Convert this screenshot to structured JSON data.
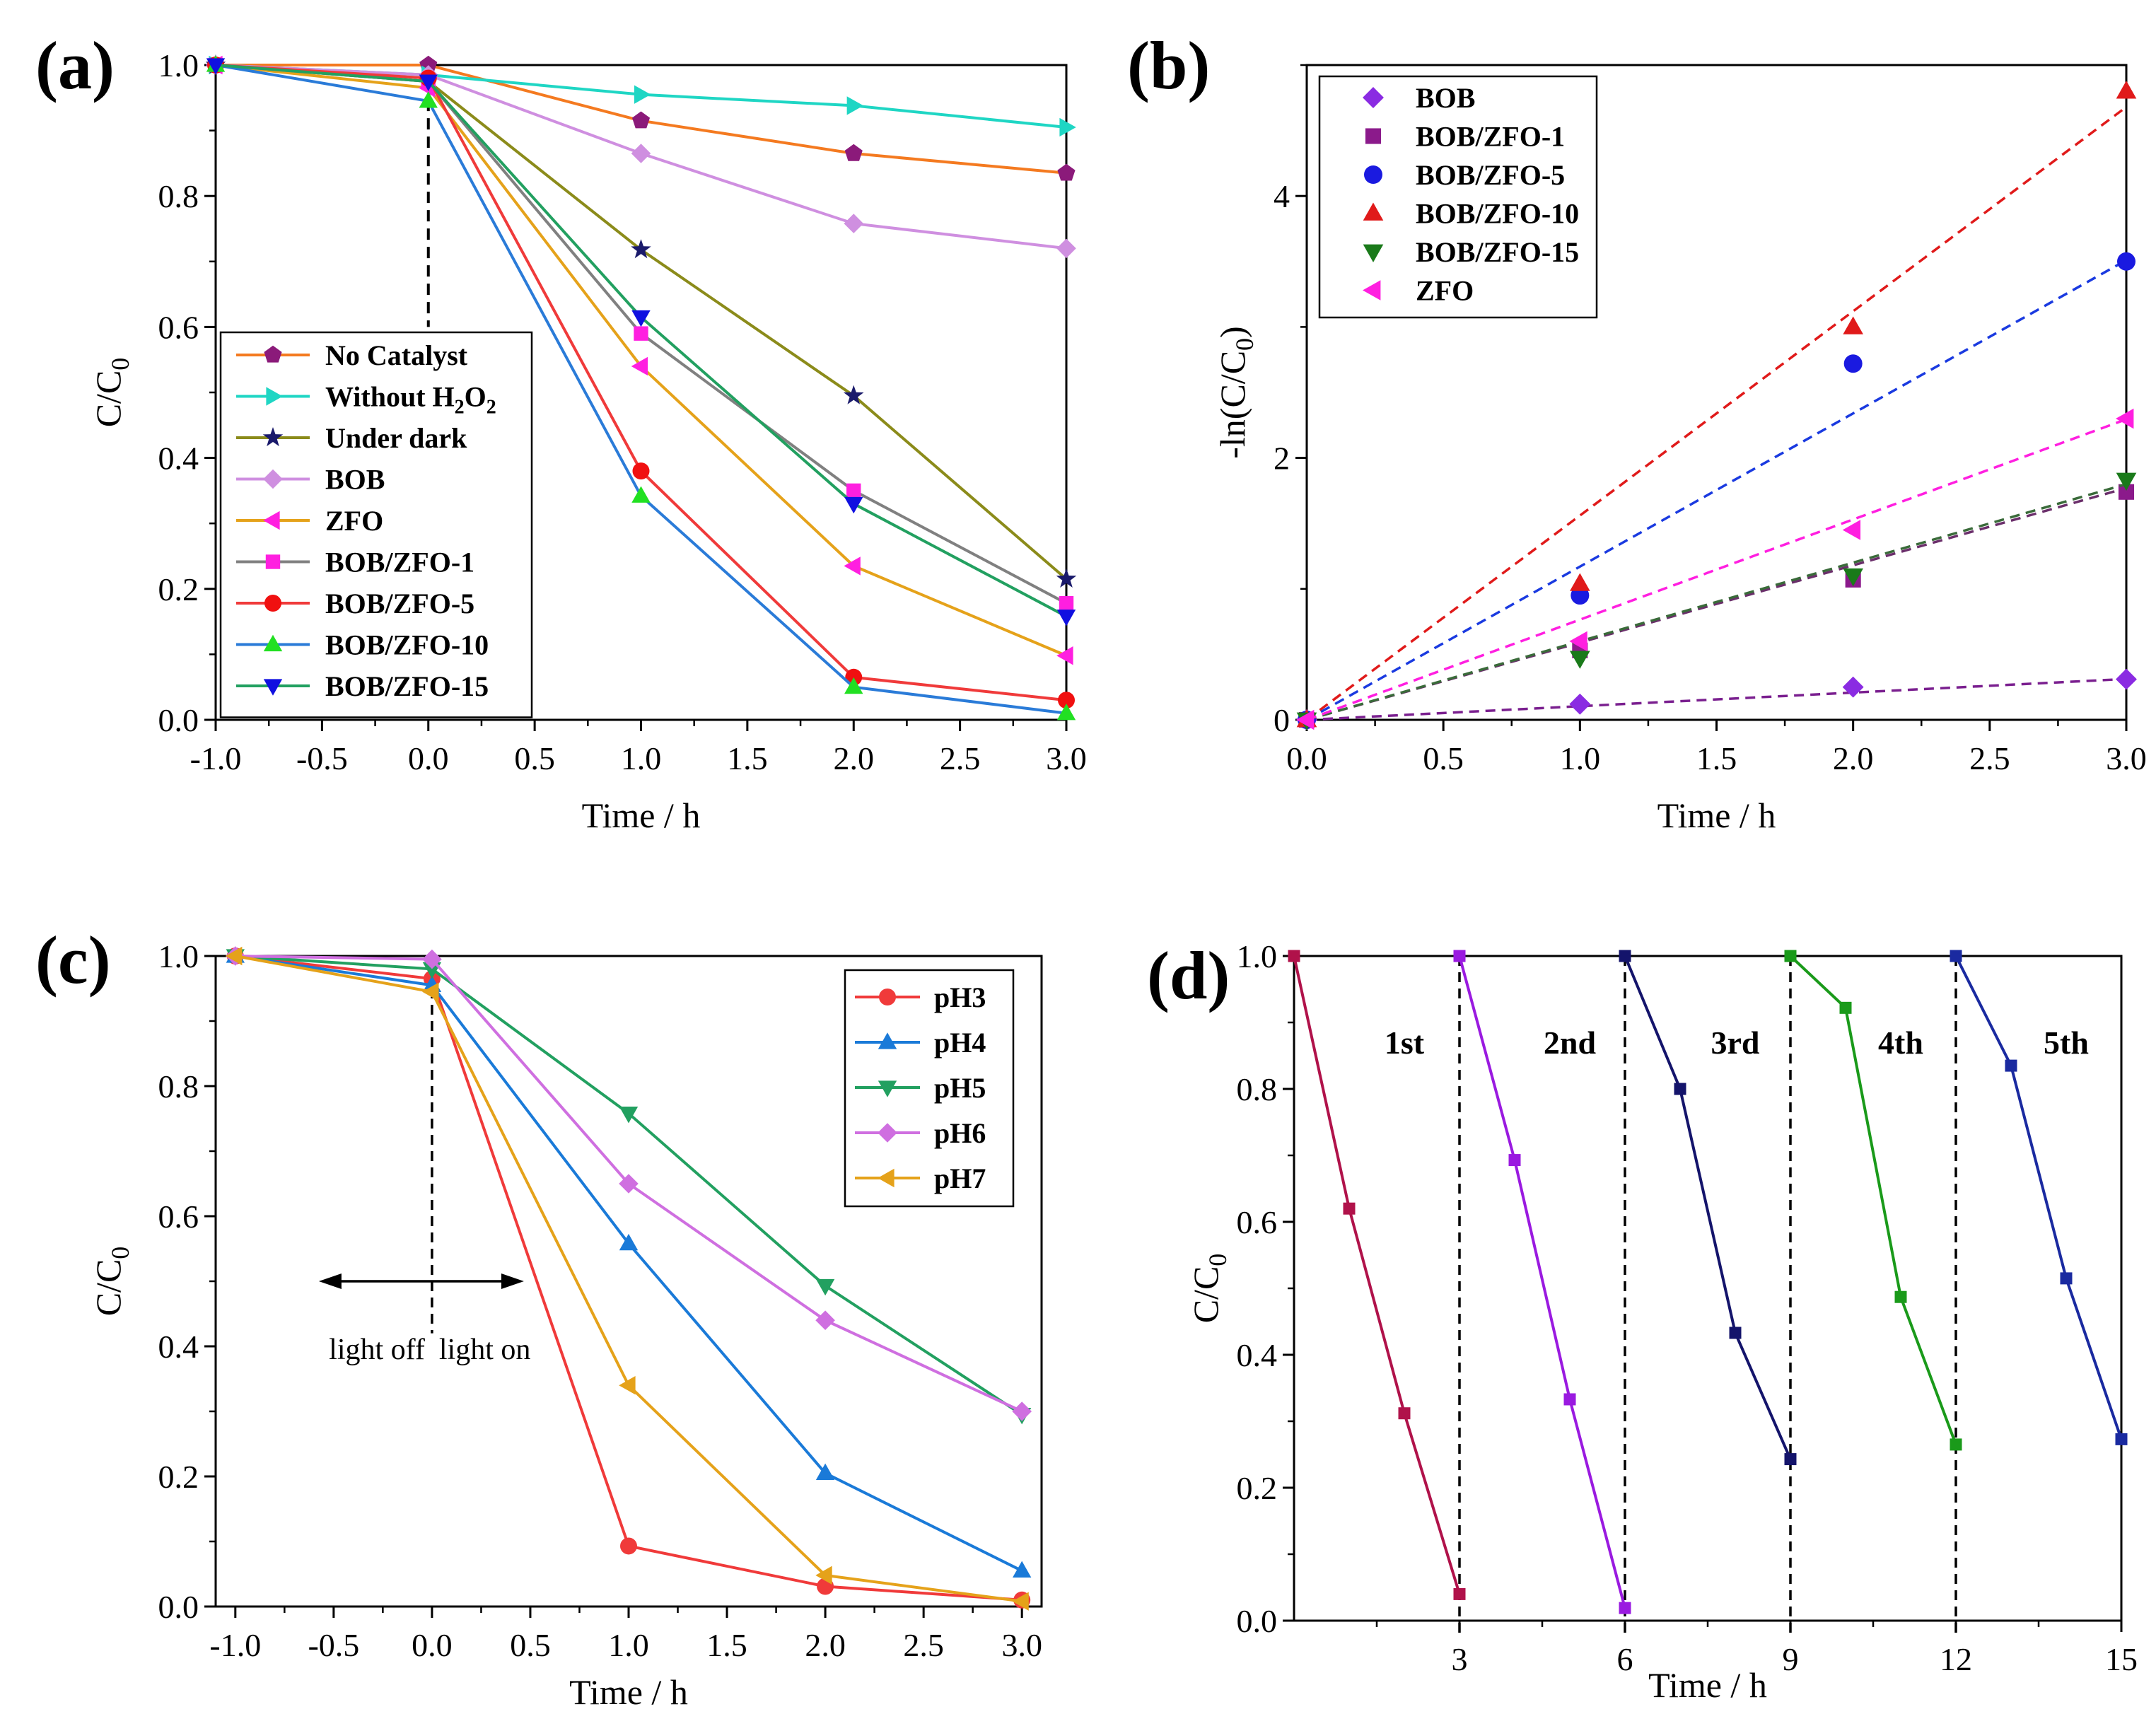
{
  "chart_data": [
    {
      "type": "line",
      "panel_label": "(a)",
      "xlabel": "Time / h",
      "ylabel": "C/C0",
      "xlim": [
        -1.0,
        3.0
      ],
      "ylim": [
        0.0,
        1.0
      ],
      "xticks": [
        "-1.0",
        "-0.5",
        "0.0",
        "0.5",
        "1.0",
        "1.5",
        "2.0",
        "2.5",
        "3.0"
      ],
      "yticks": [
        "0.0",
        "0.2",
        "0.4",
        "0.6",
        "0.8",
        "1.0"
      ],
      "x": [
        -1,
        0,
        1,
        2,
        3
      ],
      "series": [
        {
          "name": "No Catalyst",
          "color": "#f47a20",
          "marker_color": "#8b1a7a",
          "marker": "pentagon",
          "values": [
            1.0,
            1.0,
            0.915,
            0.865,
            0.835
          ]
        },
        {
          "name": "Without H2O2",
          "color": "#1fd6c4",
          "marker_color": "#1fd6c4",
          "marker": "triangle-right",
          "values": [
            1.0,
            0.985,
            0.955,
            0.938,
            0.905
          ]
        },
        {
          "name": "Under dark",
          "color": "#8b8b1a",
          "marker_color": "#1a1a6b",
          "marker": "star",
          "values": [
            1.0,
            0.975,
            0.718,
            0.495,
            0.215
          ]
        },
        {
          "name": "BOB",
          "color": "#cf8fe0",
          "marker_color": "#cf8fe0",
          "marker": "diamond",
          "values": [
            1.0,
            0.985,
            0.865,
            0.758,
            0.72
          ]
        },
        {
          "name": "ZFO",
          "color": "#e5a21a",
          "marker_color": "#ff1fe0",
          "marker": "triangle-left",
          "values": [
            1.0,
            0.965,
            0.54,
            0.235,
            0.098
          ]
        },
        {
          "name": "BOB/ZFO-1",
          "color": "#808080",
          "marker_color": "#ff1fe0",
          "marker": "square",
          "values": [
            1.0,
            0.975,
            0.59,
            0.35,
            0.178
          ]
        },
        {
          "name": "BOB/ZFO-5",
          "color": "#f03a3a",
          "marker_color": "#f01010",
          "marker": "circle",
          "values": [
            1.0,
            0.98,
            0.38,
            0.065,
            0.03
          ]
        },
        {
          "name": "BOB/ZFO-10",
          "color": "#2a7bd8",
          "marker_color": "#22e022",
          "marker": "triangle-up",
          "values": [
            1.0,
            0.945,
            0.342,
            0.05,
            0.01
          ]
        },
        {
          "name": "BOB/ZFO-15",
          "color": "#22a060",
          "marker_color": "#1010e0",
          "marker": "triangle-down",
          "values": [
            1.0,
            0.975,
            0.615,
            0.33,
            0.158
          ]
        }
      ],
      "legend": {
        "position": "left-middle",
        "labels": [
          {
            "main": "No Catalyst"
          },
          {
            "main": "Without H",
            "sub1": "2",
            "mid": "O",
            "sub2": "2"
          },
          {
            "main": "Under dark"
          },
          {
            "main": "BOB"
          },
          {
            "main": "ZFO"
          },
          {
            "main": "BOB/ZFO-1"
          },
          {
            "main": "BOB/ZFO-5"
          },
          {
            "main": "BOB/ZFO-10"
          },
          {
            "main": "BOB/ZFO-15"
          }
        ]
      },
      "annotation": {
        "type": "vline-dashed",
        "x": 0.0,
        "y_range": [
          0.6,
          0.975
        ]
      }
    },
    {
      "type": "scatter",
      "panel_label": "(b)",
      "xlabel": "Time / h",
      "ylabel": "-ln(C/C0)",
      "xlim": [
        0.0,
        3.0
      ],
      "ylim": [
        0.0,
        5.0
      ],
      "xticks": [
        "0.0",
        "0.5",
        "1.0",
        "1.5",
        "2.0",
        "2.5",
        "3.0"
      ],
      "yticks": [
        "0",
        "2",
        "4"
      ],
      "x": [
        0,
        1,
        2,
        3
      ],
      "series": [
        {
          "name": "BOB",
          "color": "#8a2be2",
          "marker": "diamond",
          "values": [
            0.0,
            0.12,
            0.25,
            0.31
          ],
          "fit_slope": 0.104,
          "fit_color": "#7a1f8f"
        },
        {
          "name": "BOB/ZFO-1",
          "color": "#8b1a8b",
          "marker": "square",
          "values": [
            0.0,
            0.53,
            1.07,
            1.74
          ],
          "fit_slope": 0.59,
          "fit_color": "#6b2f6b"
        },
        {
          "name": "BOB/ZFO-5",
          "color": "#1a1ae0",
          "marker": "circle",
          "values": [
            0.0,
            0.95,
            2.72,
            3.5
          ],
          "fit_slope": 1.17,
          "fit_color": "#1a3ae0"
        },
        {
          "name": "BOB/ZFO-10",
          "color": "#e01a1a",
          "marker": "triangle-up",
          "values": [
            0.0,
            1.04,
            3.0,
            4.8
          ],
          "fit_slope": 1.56,
          "fit_color": "#e01a1a"
        },
        {
          "name": "BOB/ZFO-15",
          "color": "#1a7a1a",
          "marker": "triangle-down",
          "values": [
            0.0,
            0.47,
            1.1,
            1.83
          ],
          "fit_slope": 0.6,
          "fit_color": "#3a6b3a"
        },
        {
          "name": "ZFO",
          "color": "#ff1fe0",
          "marker": "triangle-left",
          "values": [
            0.0,
            0.6,
            1.45,
            2.3
          ],
          "fit_slope": 0.765,
          "fit_color": "#ff1fe0"
        }
      ],
      "legend": {
        "position": "top-left",
        "labels": [
          {
            "main": "BOB"
          },
          {
            "main": "BOB/ZFO-1"
          },
          {
            "main": "BOB/ZFO-5"
          },
          {
            "main": "BOB/ZFO-10"
          },
          {
            "main": "BOB/ZFO-15"
          },
          {
            "main": "ZFO"
          }
        ]
      }
    },
    {
      "type": "line",
      "panel_label": "(c)",
      "xlabel": "Time / h",
      "ylabel": "C/C0",
      "xlim": [
        -1.1,
        3.1
      ],
      "ylim": [
        0.0,
        1.0
      ],
      "xticks": [
        "-1.0",
        "-0.5",
        "0.0",
        "0.5",
        "1.0",
        "1.5",
        "2.0",
        "2.5",
        "3.0"
      ],
      "yticks": [
        "0.0",
        "0.2",
        "0.4",
        "0.6",
        "0.8",
        "1.0"
      ],
      "x": [
        -1,
        0,
        1,
        2,
        3
      ],
      "series": [
        {
          "name": "pH3",
          "color": "#f03a3a",
          "marker_color": "#f03a3a",
          "marker": "circle",
          "values": [
            1.0,
            0.965,
            0.093,
            0.031,
            0.01
          ]
        },
        {
          "name": "pH4",
          "color": "#1a7ad8",
          "marker_color": "#1a7ad8",
          "marker": "triangle-up",
          "values": [
            1.0,
            0.955,
            0.558,
            0.205,
            0.055
          ]
        },
        {
          "name": "pH5",
          "color": "#22a060",
          "marker_color": "#22a060",
          "marker": "triangle-down",
          "values": [
            1.0,
            0.98,
            0.758,
            0.493,
            0.295
          ]
        },
        {
          "name": "pH6",
          "color": "#cf6fe0",
          "marker_color": "#cf6fe0",
          "marker": "diamond",
          "values": [
            1.0,
            0.995,
            0.65,
            0.44,
            0.3
          ]
        },
        {
          "name": "pH7",
          "color": "#e5a21a",
          "marker_color": "#e5a21a",
          "marker": "triangle-left",
          "values": [
            1.0,
            0.945,
            0.34,
            0.048,
            0.008
          ]
        }
      ],
      "legend": {
        "position": "top-right",
        "labels": [
          {
            "main": "pH3"
          },
          {
            "main": "pH4"
          },
          {
            "main": "pH5"
          },
          {
            "main": "pH6"
          },
          {
            "main": "pH7"
          }
        ]
      },
      "annotations": {
        "light_off": "light off",
        "light_on": "light on",
        "vline_x": 0.0,
        "arrow_y": 0.5
      }
    },
    {
      "type": "line",
      "panel_label": "(d)",
      "xlabel": "Time / h",
      "ylabel": "C/C0",
      "xlim": [
        0,
        15
      ],
      "ylim": [
        0.0,
        1.0
      ],
      "xticks": [
        "3",
        "6",
        "9",
        "12",
        "15"
      ],
      "yticks": [
        "0.0",
        "0.2",
        "0.4",
        "0.6",
        "0.8",
        "1.0"
      ],
      "series": [
        {
          "name": "1st",
          "color": "#b0124a",
          "x": [
            0,
            1,
            2,
            3
          ],
          "values": [
            1.0,
            0.62,
            0.312,
            0.04
          ]
        },
        {
          "name": "2nd",
          "color": "#9a1ae0",
          "x": [
            3,
            4,
            5,
            6
          ],
          "values": [
            1.0,
            0.693,
            0.333,
            0.019
          ]
        },
        {
          "name": "3rd",
          "color": "#14146b",
          "x": [
            6,
            7,
            8,
            9
          ],
          "values": [
            1.0,
            0.8,
            0.433,
            0.243
          ]
        },
        {
          "name": "4th",
          "color": "#1a9a1a",
          "x": [
            9,
            10,
            11,
            12
          ],
          "values": [
            1.0,
            0.922,
            0.487,
            0.265
          ]
        },
        {
          "name": "5th",
          "color": "#1a2aa0",
          "x": [
            12,
            13,
            14,
            15
          ],
          "values": [
            1.0,
            0.835,
            0.515,
            0.273
          ]
        }
      ],
      "cycle_labels": [
        "1st",
        "2nd",
        "3rd",
        "4th",
        "5th"
      ],
      "cycle_label_y": 0.87,
      "divider_x": [
        3,
        6,
        9,
        12
      ]
    }
  ]
}
